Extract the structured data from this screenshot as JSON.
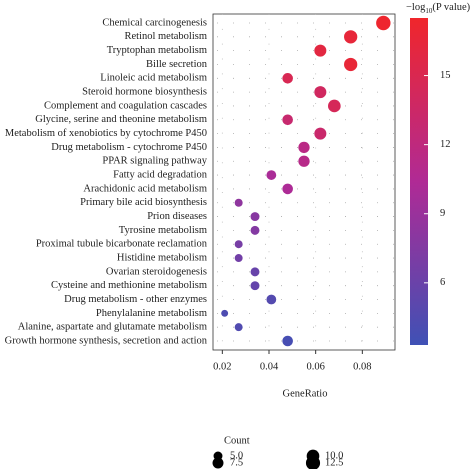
{
  "chart_data": {
    "type": "dot",
    "categories": [
      "Chemical carcinogenesis",
      "Retinol metabolism",
      "Tryptophan metabolism",
      "Bille secretion",
      "Linoleic acid metabolism",
      "Steroid hormone biosynthesis",
      "Complement and coagulation cascades",
      "Glycine, serine and theonine metabolism",
      "Metabolism of xenobiotics by cytochrome P450",
      "Drug metabolism - cytochrome P450",
      "PPAR signaling pathway",
      "Fatty acid degradation",
      "Arachidonic acid metabolism",
      "Primary bile acid biosynthesis",
      "Prion diseases",
      "Tyrosine metabolism",
      "Proximal tubule bicarbonate reclamation",
      "Histidine metabolism",
      "Ovarian steroidogenesis",
      "Cysteine and methionine metabolism",
      "Drug metabolism - other enzymes",
      "Phenylalanine metabolism",
      "Alanine, aspartate and glutamate metabolism",
      "Growth hormone synthesis, secretion and action"
    ],
    "x": [
      0.089,
      0.075,
      0.062,
      0.075,
      0.048,
      0.062,
      0.068,
      0.048,
      0.062,
      0.055,
      0.055,
      0.041,
      0.048,
      0.027,
      0.034,
      0.034,
      0.027,
      0.027,
      0.034,
      0.034,
      0.041,
      0.021,
      0.027,
      0.048
    ],
    "count": [
      13,
      11,
      9,
      11,
      7,
      9,
      10,
      7,
      9,
      8,
      8,
      6,
      7,
      4,
      5,
      5,
      4,
      4,
      5,
      5,
      6,
      3,
      4,
      7
    ],
    "color_values": [
      17.3,
      16.5,
      16,
      16.6,
      14.8,
      14,
      14.5,
      13,
      13.2,
      11.5,
      11.2,
      10,
      10.2,
      8.3,
      7.8,
      7.6,
      6.8,
      6.5,
      5.8,
      5.6,
      4.6,
      4.2,
      4.4,
      3.8
    ],
    "xlabel": "GeneRatio",
    "xlim": [
      0.016,
      0.094
    ],
    "xticks": [
      0.02,
      0.04,
      0.06,
      0.08
    ],
    "grid": true,
    "colorbar": {
      "title_prefix": "−log",
      "title_sub": "10",
      "title_suffix": "(P value)",
      "lim": [
        3.3,
        17.5
      ],
      "ticks": [
        6,
        9,
        12,
        15
      ],
      "colors": [
        "#3f51b5",
        "#b02a95",
        "#f0262b"
      ]
    },
    "size_legend": {
      "title": "Count",
      "values": [
        5.0,
        7.5,
        10.0,
        12.5
      ],
      "labels": [
        "5.0",
        "7.5",
        "10.0",
        "12.5"
      ]
    }
  }
}
